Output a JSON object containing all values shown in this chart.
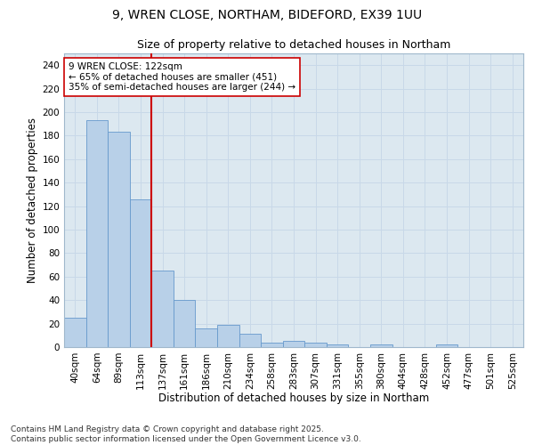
{
  "title1": "9, WREN CLOSE, NORTHAM, BIDEFORD, EX39 1UU",
  "title2": "Size of property relative to detached houses in Northam",
  "xlabel": "Distribution of detached houses by size in Northam",
  "ylabel": "Number of detached properties",
  "categories": [
    "40sqm",
    "64sqm",
    "89sqm",
    "113sqm",
    "137sqm",
    "161sqm",
    "186sqm",
    "210sqm",
    "234sqm",
    "258sqm",
    "283sqm",
    "307sqm",
    "331sqm",
    "355sqm",
    "380sqm",
    "404sqm",
    "428sqm",
    "452sqm",
    "477sqm",
    "501sqm",
    "525sqm"
  ],
  "values": [
    25,
    193,
    183,
    126,
    65,
    40,
    16,
    19,
    11,
    4,
    5,
    4,
    2,
    0,
    2,
    0,
    0,
    2,
    0,
    0,
    0
  ],
  "bar_color": "#b8d0e8",
  "bar_edge_color": "#6699cc",
  "vline_x": 3.5,
  "vline_color": "#cc0000",
  "annotation_text": "9 WREN CLOSE: 122sqm\n← 65% of detached houses are smaller (451)\n35% of semi-detached houses are larger (244) →",
  "annotation_box_color": "#ffffff",
  "annotation_box_edge": "#cc0000",
  "ylim": [
    0,
    250
  ],
  "yticks": [
    0,
    20,
    40,
    60,
    80,
    100,
    120,
    140,
    160,
    180,
    200,
    220,
    240
  ],
  "grid_color": "#c8d8e8",
  "background_color": "#dce8f0",
  "footer": "Contains HM Land Registry data © Crown copyright and database right 2025.\nContains public sector information licensed under the Open Government Licence v3.0.",
  "title_fontsize": 10,
  "subtitle_fontsize": 9,
  "axis_label_fontsize": 8.5,
  "tick_fontsize": 7.5,
  "annot_fontsize": 7.5,
  "footer_fontsize": 6.5
}
